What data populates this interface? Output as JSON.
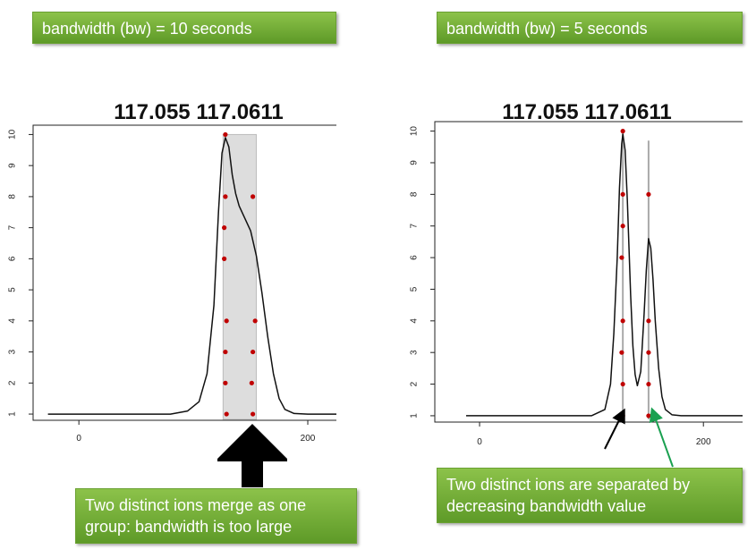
{
  "left": {
    "header": "bandwidth (bw) = 10 seconds",
    "note": "Two distinct ions merge as one group: bandwidth is too large"
  },
  "right": {
    "header": "bandwidth (bw) = 5 seconds",
    "note": "Two distinct ions are separated by decreasing bandwidth value"
  },
  "colors": {
    "box_green": "#6aa132",
    "point": "#c00000",
    "group_band": "#dddddd",
    "arrow_black": "#000000",
    "arrow_green": "#1aa050"
  },
  "chart_data": [
    {
      "type": "scatter",
      "title": "117.055 117.0611",
      "xlabel": "",
      "ylabel": "",
      "x_ticks": [
        0,
        200
      ],
      "y_ticks": [
        1,
        2,
        3,
        4,
        5,
        6,
        7,
        8,
        9,
        10
      ],
      "xlim": [
        -40,
        225
      ],
      "ylim": [
        0.8,
        10.3
      ],
      "points": [
        {
          "x": 128,
          "y": 10
        },
        {
          "x": 128,
          "y": 8
        },
        {
          "x": 127,
          "y": 7
        },
        {
          "x": 127,
          "y": 6
        },
        {
          "x": 129,
          "y": 4
        },
        {
          "x": 128,
          "y": 3
        },
        {
          "x": 128,
          "y": 2
        },
        {
          "x": 129,
          "y": 1
        },
        {
          "x": 152,
          "y": 8
        },
        {
          "x": 154,
          "y": 4
        },
        {
          "x": 152,
          "y": 3
        },
        {
          "x": 151,
          "y": 2
        },
        {
          "x": 152,
          "y": 1
        }
      ],
      "group_bands": [
        [
          126,
          155
        ]
      ],
      "density_curve": {
        "x": [
          -27,
          80,
          95,
          105,
          112,
          118,
          122,
          125,
          128,
          131,
          134,
          137,
          140,
          145,
          150,
          155,
          160,
          165,
          170,
          175,
          180,
          188,
          200,
          225
        ],
        "y": [
          1,
          1,
          1.1,
          1.4,
          2.3,
          4.5,
          7.5,
          9.4,
          9.9,
          9.6,
          8.7,
          8.1,
          7.7,
          7.3,
          6.9,
          6.1,
          4.9,
          3.5,
          2.3,
          1.5,
          1.15,
          1.02,
          1,
          1
        ]
      }
    },
    {
      "type": "scatter",
      "title": "117.055 117.0611",
      "xlabel": "",
      "ylabel": "",
      "x_ticks": [
        0,
        200
      ],
      "y_ticks": [
        1,
        2,
        3,
        4,
        5,
        6,
        7,
        8,
        9,
        10
      ],
      "xlim": [
        -40,
        235
      ],
      "ylim": [
        0.8,
        10.3
      ],
      "points": [
        {
          "x": 128,
          "y": 10
        },
        {
          "x": 128,
          "y": 8
        },
        {
          "x": 128,
          "y": 7
        },
        {
          "x": 127,
          "y": 6
        },
        {
          "x": 128,
          "y": 4
        },
        {
          "x": 127,
          "y": 3
        },
        {
          "x": 128,
          "y": 2
        },
        {
          "x": 128,
          "y": 1
        },
        {
          "x": 151,
          "y": 8
        },
        {
          "x": 151,
          "y": 4
        },
        {
          "x": 151,
          "y": 3
        },
        {
          "x": 151,
          "y": 2
        },
        {
          "x": 151,
          "y": 1
        }
      ],
      "group_lines": [
        {
          "x": 128,
          "ymax": 10
        },
        {
          "x": 151,
          "ymax": 9.7
        }
      ],
      "density_curve": {
        "x": [
          -12,
          100,
          112,
          117,
          120,
          123,
          125,
          127,
          128,
          130,
          132,
          135,
          137,
          139,
          141,
          144,
          147,
          149,
          151,
          153,
          155,
          157,
          160,
          163,
          166,
          172,
          180,
          235
        ],
        "y": [
          1,
          1,
          1.2,
          2.0,
          3.6,
          6.0,
          8.2,
          9.6,
          9.9,
          9.4,
          7.8,
          4.8,
          3.2,
          2.3,
          1.95,
          2.4,
          4.2,
          5.6,
          6.6,
          6.3,
          5.3,
          4.0,
          2.5,
          1.6,
          1.2,
          1.03,
          1,
          1
        ]
      }
    }
  ]
}
